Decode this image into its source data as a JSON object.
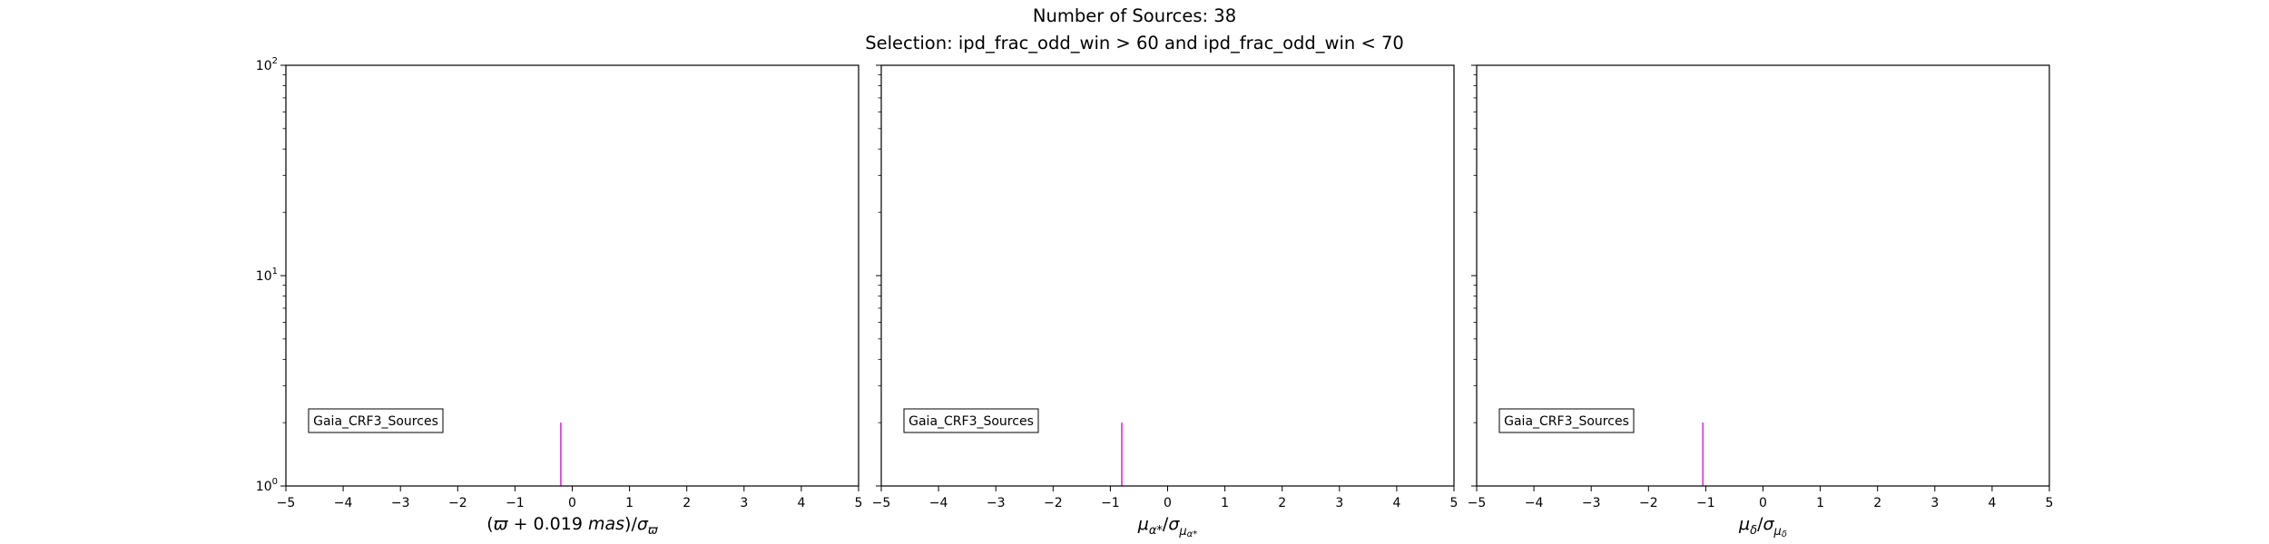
{
  "figure": {
    "title_line1": "Number of Sources: 38",
    "title_line2": "Selection: ipd_frac_odd_win > 60 and ipd_frac_odd_win < 70"
  },
  "colors": {
    "hist": "#e23fe2",
    "axes": "#000000"
  },
  "chart_data": [
    {
      "type": "bar",
      "xlabel": "(ϖ + 0.019 mas)/σ_ϖ",
      "ylabel": "",
      "xlim": [
        -5,
        5
      ],
      "ylim": [
        1,
        100
      ],
      "yscale": "log",
      "xticks": [
        "−5",
        "−4",
        "−3",
        "−2",
        "−1",
        "0",
        "1",
        "2",
        "3",
        "4",
        "5"
      ],
      "yticks": [
        "10^0",
        "10^1",
        "10^2"
      ],
      "legend": {
        "label": "Gaia_CRF3_Sources",
        "placement": "lower-left"
      },
      "series": [
        {
          "name": "Gaia_CRF3_Sources",
          "x": [
            -0.2
          ],
          "values": [
            2
          ]
        }
      ]
    },
    {
      "type": "bar",
      "xlabel": "μα*/σ_μα*",
      "ylabel": "",
      "xlim": [
        -5,
        5
      ],
      "ylim": [
        1,
        100
      ],
      "yscale": "log",
      "xticks": [
        "−5",
        "−4",
        "−3",
        "−2",
        "−1",
        "0",
        "1",
        "2",
        "3",
        "4",
        "5"
      ],
      "yticks": [],
      "legend": {
        "label": "Gaia_CRF3_Sources",
        "placement": "lower-left"
      },
      "series": [
        {
          "name": "Gaia_CRF3_Sources",
          "x": [
            -0.8
          ],
          "values": [
            2
          ]
        }
      ]
    },
    {
      "type": "bar",
      "xlabel": "μδ/σ_μδ",
      "ylabel": "",
      "xlim": [
        -5,
        5
      ],
      "ylim": [
        1,
        100
      ],
      "yscale": "log",
      "xticks": [
        "−5",
        "−4",
        "−3",
        "−2",
        "−1",
        "0",
        "1",
        "2",
        "3",
        "4",
        "5"
      ],
      "yticks": [],
      "legend": {
        "label": "Gaia_CRF3_Sources",
        "placement": "lower-left"
      },
      "series": [
        {
          "name": "Gaia_CRF3_Sources",
          "x": [
            -1.05
          ],
          "values": [
            2
          ]
        }
      ]
    }
  ]
}
